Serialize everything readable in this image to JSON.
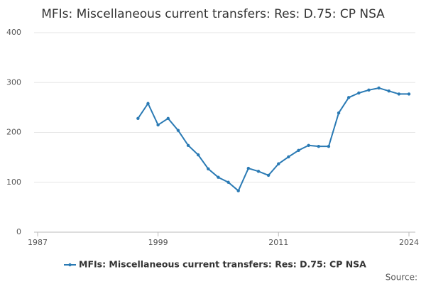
{
  "chart_data": {
    "type": "line",
    "title": "MFIs: Miscellaneous current transfers: Res: D.75: CP NSA",
    "x": [
      1997,
      1998,
      1999,
      2000,
      2001,
      2002,
      2003,
      2004,
      2005,
      2006,
      2007,
      2008,
      2009,
      2010,
      2011,
      2012,
      2013,
      2014,
      2015,
      2016,
      2017,
      2018,
      2019,
      2020,
      2021,
      2022,
      2023,
      2024
    ],
    "series": [
      {
        "name": "MFIs: Miscellaneous current transfers: Res: D.75: CP NSA",
        "color": "#2a7ab4",
        "values": [
          228,
          258,
          215,
          228,
          204,
          174,
          155,
          127,
          110,
          100,
          83,
          128,
          122,
          114,
          137,
          151,
          164,
          174,
          172,
          172,
          239,
          270,
          279,
          285,
          289,
          283,
          277,
          277
        ]
      }
    ],
    "xlim": [
      1987,
      2024
    ],
    "xticks": [
      1987,
      1999,
      2011,
      2024
    ],
    "ylim": [
      0,
      400
    ],
    "yticks": [
      0,
      100,
      200,
      300,
      400
    ],
    "grid": true,
    "legend": "bottom",
    "source": "Source:"
  }
}
